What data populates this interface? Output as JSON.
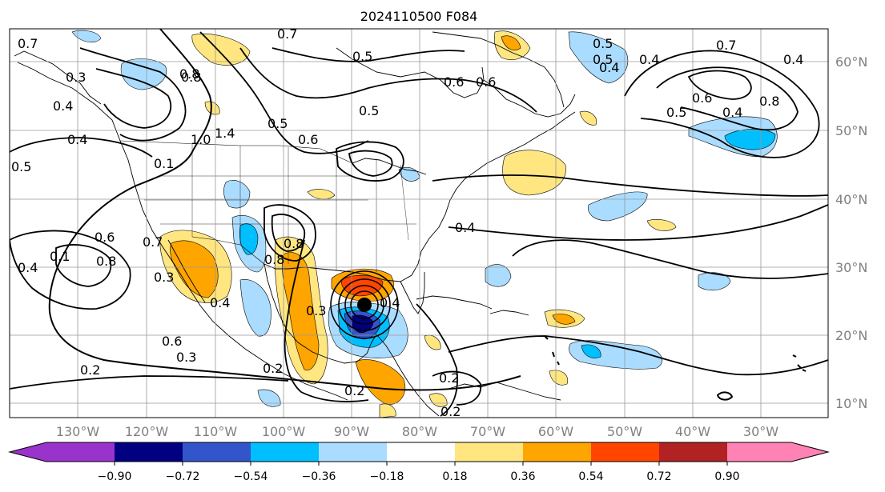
{
  "title": "2024110500 F084",
  "map": {
    "lon_labels": [
      "130°W",
      "120°W",
      "110°W",
      "100°W",
      "90°W",
      "80°W",
      "70°W",
      "60°W",
      "50°W",
      "40°W",
      "30°W"
    ],
    "lat_labels": [
      "60°N",
      "50°N",
      "40°N",
      "30°N",
      "20°N",
      "10°N"
    ],
    "grid_color": "#999999",
    "contour_labels": [
      "0.7",
      "0.7",
      "0.5",
      "0.6",
      "0.5",
      "0.5",
      "0.6",
      "0.6",
      "0.5",
      "0.5",
      "0.4",
      "0.4",
      "0.7",
      "0.4",
      "0.8",
      "0.5",
      "0.6",
      "0.4",
      "0.8",
      "0.3",
      "0.4",
      "0.4",
      "0.5",
      "0.1",
      "0.8",
      "1.0",
      "1.4",
      "0.7",
      "0.4",
      "0.1",
      "0.6",
      "0.8",
      "0.4",
      "0.3",
      "0.4",
      "0.6",
      "0.3",
      "0.2",
      "0.8",
      "0.8",
      "0.3",
      "0.4",
      "0.2",
      "0.2",
      "0.2",
      "0.2"
    ],
    "storm_center": {
      "lon": "88°W",
      "lat": "24°N"
    }
  },
  "colorbar": {
    "ticks": [
      "−0.90",
      "−0.72",
      "−0.54",
      "−0.36",
      "−0.18",
      "0.18",
      "0.36",
      "0.54",
      "0.72",
      "0.90"
    ],
    "colors": [
      "#9933cc",
      "#000080",
      "#3355cc",
      "#00bfff",
      "#aadcff",
      "#ffffff",
      "#ffe680",
      "#ffa500",
      "#ff4500",
      "#b22222",
      "#ff82b4"
    ]
  }
}
